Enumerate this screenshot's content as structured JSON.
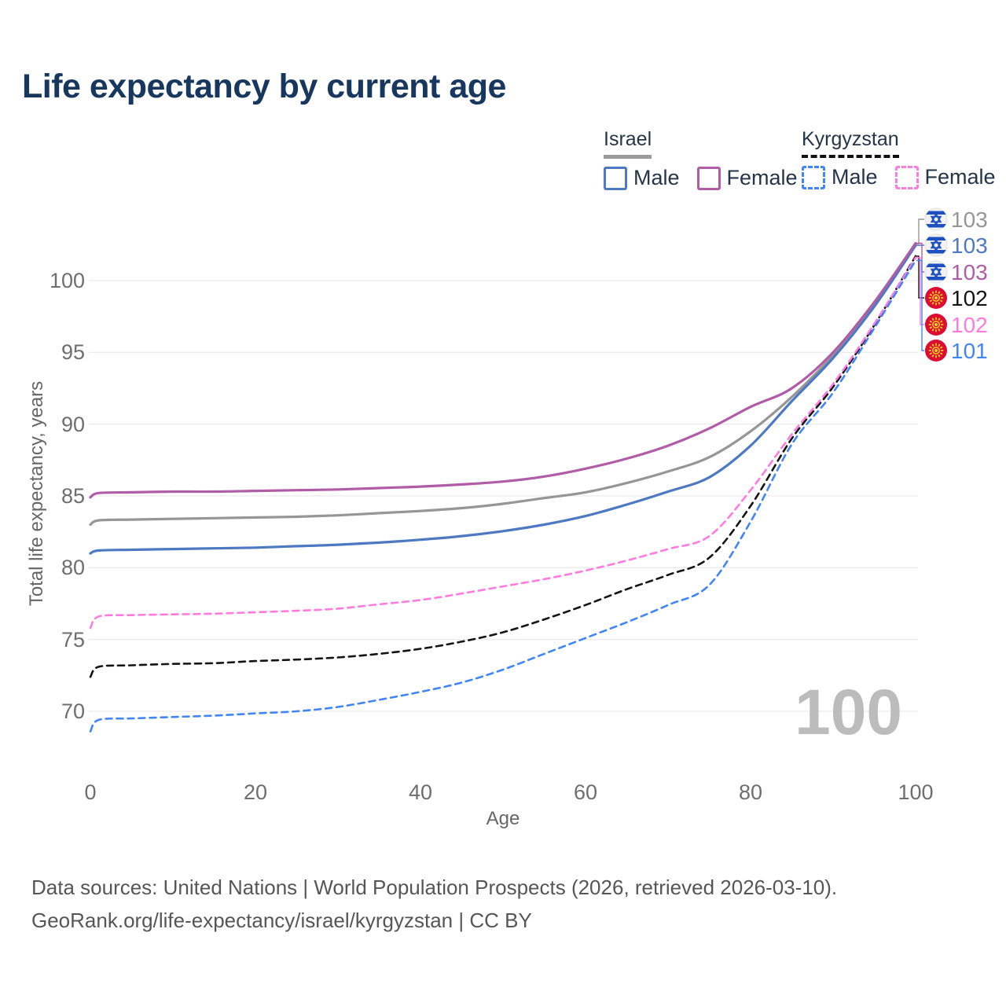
{
  "title": "Life expectancy by current age",
  "watermark_age": "100",
  "legend": {
    "groups": [
      {
        "label": "Israel",
        "underline_style": "solid",
        "underline_color": "#9b9b9b",
        "items": [
          {
            "label": "Male",
            "color": "#4d79c2",
            "dashed": false
          },
          {
            "label": "Female",
            "color": "#b05ca6",
            "dashed": false
          }
        ]
      },
      {
        "label": "Kyrgyzstan",
        "underline_style": "dashed",
        "underline_color": "#111111",
        "items": [
          {
            "label": "Male",
            "color": "#4285f4",
            "dashed": true
          },
          {
            "label": "Female",
            "color": "#ff7bdf",
            "dashed": true
          }
        ]
      }
    ]
  },
  "chart_data": {
    "type": "line",
    "title": "Life expectancy by current age",
    "xlabel": "Age",
    "ylabel": "Total life expectancy, years",
    "xlim": [
      0,
      100
    ],
    "ylim": [
      68,
      103.5
    ],
    "x_ticks": [
      0,
      20,
      40,
      60,
      80,
      100
    ],
    "y_ticks": [
      70,
      75,
      80,
      85,
      90,
      95,
      100
    ],
    "grid": "horizontal",
    "legend_position": "top-right",
    "ages": [
      0,
      1,
      5,
      10,
      15,
      20,
      25,
      30,
      35,
      40,
      45,
      50,
      55,
      60,
      65,
      70,
      75,
      80,
      85,
      90,
      95,
      100
    ],
    "series": [
      {
        "name": "Israel (all)",
        "country": "Israel",
        "color": "#969696",
        "dashed": false,
        "flag": "israel",
        "end_label": "103",
        "values": [
          83.0,
          83.3,
          83.35,
          83.4,
          83.45,
          83.5,
          83.55,
          83.65,
          83.8,
          83.95,
          84.15,
          84.45,
          84.85,
          85.25,
          85.9,
          86.7,
          87.7,
          89.5,
          91.9,
          94.8,
          98.3,
          102.55
        ]
      },
      {
        "name": "Israel Male",
        "country": "Israel",
        "color": "#4d79c2",
        "dashed": false,
        "flag": "israel",
        "end_label": "103",
        "values": [
          81.0,
          81.2,
          81.25,
          81.3,
          81.35,
          81.4,
          81.5,
          81.6,
          81.75,
          81.95,
          82.2,
          82.55,
          83.0,
          83.6,
          84.4,
          85.3,
          86.3,
          88.5,
          91.6,
          94.6,
          98.2,
          102.45
        ]
      },
      {
        "name": "Israel Female",
        "country": "Israel",
        "color": "#b05ca6",
        "dashed": false,
        "flag": "israel",
        "end_label": "103",
        "values": [
          84.9,
          85.2,
          85.25,
          85.3,
          85.3,
          85.35,
          85.4,
          85.45,
          85.55,
          85.65,
          85.8,
          86.0,
          86.35,
          86.9,
          87.6,
          88.5,
          89.7,
          91.2,
          92.5,
          95.0,
          98.5,
          102.6
        ]
      },
      {
        "name": "Kyrgyzstan (all)",
        "country": "Kyrgyzstan",
        "color": "#141414",
        "dashed": true,
        "flag": "kyrgyzstan",
        "end_label": "102",
        "values": [
          72.4,
          73.1,
          73.2,
          73.3,
          73.35,
          73.5,
          73.6,
          73.75,
          74.0,
          74.35,
          74.85,
          75.5,
          76.4,
          77.4,
          78.5,
          79.5,
          80.7,
          84.3,
          89.0,
          92.6,
          96.9,
          101.7
        ]
      },
      {
        "name": "Kyrgyzstan Female",
        "country": "Kyrgyzstan",
        "color": "#ff7bdf",
        "dashed": true,
        "flag": "kyrgyzstan",
        "end_label": "102",
        "values": [
          75.8,
          76.6,
          76.7,
          76.75,
          76.8,
          76.9,
          77.0,
          77.15,
          77.45,
          77.75,
          78.2,
          78.7,
          79.2,
          79.8,
          80.5,
          81.3,
          82.2,
          85.4,
          89.3,
          92.8,
          97.0,
          101.6
        ]
      },
      {
        "name": "Kyrgyzstan Male",
        "country": "Kyrgyzstan",
        "color": "#4285f4",
        "dashed": true,
        "flag": "kyrgyzstan",
        "end_label": "101",
        "values": [
          68.6,
          69.4,
          69.5,
          69.6,
          69.7,
          69.85,
          70.0,
          70.3,
          70.8,
          71.35,
          72.0,
          72.9,
          74.0,
          75.1,
          76.2,
          77.4,
          78.8,
          83.2,
          88.6,
          92.2,
          96.7,
          101.4
        ]
      }
    ],
    "flag_colors": {
      "israel": {
        "background": "#f2f2f2",
        "emblem": "#1d50c0"
      },
      "kyrgyzstan": {
        "background": "#dd0c33",
        "emblem": "#ffcf1f"
      }
    },
    "gridline_color": "#ececec"
  },
  "footer": {
    "line1": "Data sources: United Nations | World Population Prospects (2026, retrieved 2026-03-10).",
    "line2": "GeoRank.org/life-expectancy/israel/kyrgyzstan | CC BY"
  }
}
